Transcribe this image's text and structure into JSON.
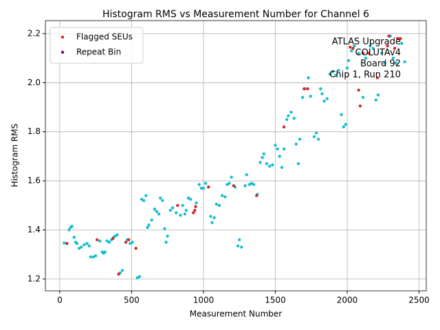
{
  "chart_data": {
    "type": "scatter",
    "title": "Histogram RMS vs Measurement Number for Channel 6",
    "xlabel": "Measurement Number",
    "ylabel": "Histogram RMS",
    "annotation": [
      "ATLAS Upgrade",
      "COLUTAv4",
      "Board 92",
      "Chip 1, Run 210"
    ],
    "xlim": [
      -100,
      2550
    ],
    "ylim": [
      1.152,
      2.253
    ],
    "xticks": [
      0,
      500,
      1000,
      1500,
      2000,
      2500
    ],
    "yticks": [
      1.2,
      1.4,
      1.6,
      1.8,
      {
        "value": 2,
        "label": "2.0"
      },
      2.2
    ],
    "grid": true,
    "legend": "upper left",
    "series": [
      {
        "color": "#17becf",
        "x": [
          30,
          50,
          65,
          75,
          85,
          100,
          110,
          120,
          135,
          150,
          170,
          190,
          205,
          215,
          235,
          250,
          280,
          295,
          305,
          315,
          330,
          345,
          360,
          375,
          385,
          400,
          420,
          435,
          470,
          490,
          505,
          540,
          555,
          570,
          585,
          600,
          610,
          620,
          640,
          660,
          675,
          690,
          700,
          715,
          730,
          740,
          750,
          770,
          785,
          810,
          840,
          855,
          870,
          880,
          895,
          910,
          950,
          970,
          985,
          1000,
          1015,
          1050,
          1060,
          1075,
          1090,
          1110,
          1130,
          1150,
          1165,
          1180,
          1195,
          1220,
          1240,
          1250,
          1265,
          1290,
          1300,
          1320,
          1335,
          1350,
          1375,
          1395,
          1410,
          1420,
          1440,
          1460,
          1480,
          1500,
          1515,
          1530,
          1545,
          1560,
          1580,
          1590,
          1610,
          1630,
          1645,
          1660,
          1670,
          1690,
          1705,
          1730,
          1745,
          1770,
          1785,
          1800,
          1815,
          1825,
          1840,
          1860,
          1880,
          1900,
          1920,
          1940,
          1960,
          1975,
          1990,
          2000,
          2010,
          2030,
          2050,
          2080,
          2110,
          2130,
          2160,
          2180,
          2200,
          2215,
          2240,
          2260,
          2300,
          2320,
          2340,
          2360,
          2380,
          2400
        ],
        "values": [
          1.347,
          1.345,
          1.4,
          1.41,
          1.415,
          1.37,
          1.35,
          1.345,
          1.325,
          1.33,
          1.34,
          1.345,
          1.335,
          1.29,
          1.29,
          1.295,
          1.355,
          1.31,
          1.305,
          1.31,
          1.355,
          1.35,
          1.36,
          1.37,
          1.375,
          1.38,
          1.225,
          1.235,
          1.36,
          1.345,
          1.35,
          1.205,
          1.21,
          1.525,
          1.52,
          1.54,
          1.41,
          1.42,
          1.44,
          1.485,
          1.475,
          1.465,
          1.53,
          1.52,
          1.405,
          1.35,
          1.375,
          1.48,
          1.49,
          1.47,
          1.46,
          1.5,
          1.465,
          1.48,
          1.53,
          1.525,
          1.51,
          1.585,
          1.57,
          1.57,
          1.59,
          1.455,
          1.43,
          1.45,
          1.505,
          1.5,
          1.54,
          1.535,
          1.585,
          1.59,
          1.615,
          1.575,
          1.335,
          1.36,
          1.33,
          1.58,
          1.625,
          1.585,
          1.59,
          1.585,
          1.545,
          1.675,
          1.695,
          1.71,
          1.67,
          1.66,
          1.665,
          1.745,
          1.73,
          1.7,
          1.655,
          1.73,
          1.85,
          1.865,
          1.88,
          1.855,
          1.75,
          1.67,
          1.77,
          1.94,
          1.975,
          2.02,
          1.945,
          1.78,
          1.795,
          1.77,
          1.975,
          1.955,
          1.925,
          1.935,
          2.035,
          2.045,
          2.03,
          2.05,
          1.87,
          1.82,
          1.83,
          2.06,
          2.09,
          2.13,
          2.15,
          2.12,
          1.94,
          2.1,
          2.15,
          2.14,
          1.93,
          1.95,
          2.12,
          2.08,
          2.19,
          2.1,
          2.08,
          2.18,
          2.16,
          2.085
        ]
      },
      {
        "name": "Flagged SEUs",
        "color": "#d62728",
        "x": [
          50,
          260,
          370,
          410,
          460,
          480,
          530,
          820,
          930,
          940,
          945,
          1035,
          1210,
          1370,
          1560,
          1700,
          1725,
          2020,
          2040,
          2080,
          2090,
          2110,
          2150,
          2210,
          2280,
          2290,
          2330,
          2350,
          2370
        ],
        "values": [
          1.345,
          1.36,
          1.365,
          1.22,
          1.35,
          1.36,
          1.325,
          1.5,
          1.47,
          1.48,
          1.495,
          1.575,
          1.58,
          1.54,
          1.82,
          1.975,
          1.975,
          2.145,
          2.14,
          1.97,
          1.905,
          2.12,
          2.12,
          2.02,
          2.15,
          2.19,
          2.14,
          2.18,
          2.18
        ]
      },
      {
        "name": "Repeat Bin",
        "color": "#800080",
        "x": [],
        "values": []
      }
    ]
  }
}
